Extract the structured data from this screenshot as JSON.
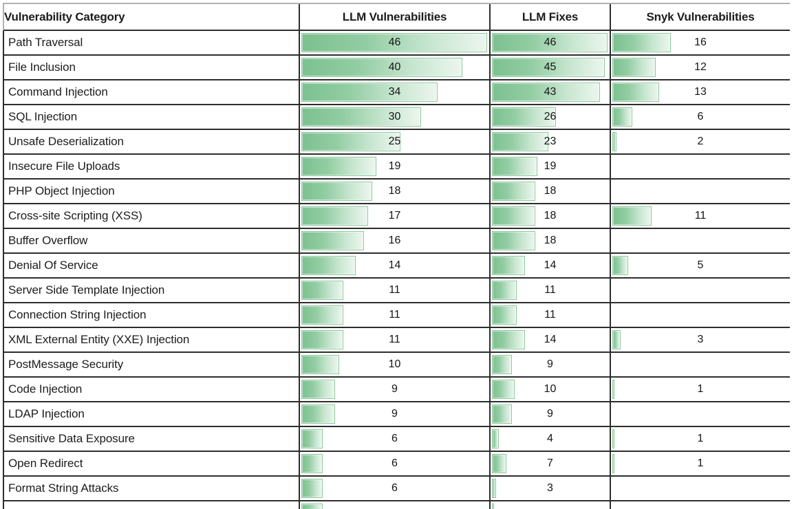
{
  "table": {
    "columns": [
      {
        "key": "category",
        "label": "Vulnerability Category"
      },
      {
        "key": "llm_vulnerabilities",
        "label": "LLM Vulnerabilities"
      },
      {
        "key": "llm_fixes",
        "label": "LLM Fixes"
      },
      {
        "key": "snyk",
        "label": "Snyk Vulnerabilities"
      }
    ],
    "bar_scale_max": 46,
    "bar_color_start": "#7cc190",
    "bar_color_end": "#ecf6ee",
    "bar_border_color": "#8cc79b",
    "grid_border_color": "#2d2d2d",
    "rows": [
      {
        "category": "Path Traversal",
        "llm_vulnerabilities": 46,
        "llm_fixes": 46,
        "snyk": 16
      },
      {
        "category": "File Inclusion",
        "llm_vulnerabilities": 40,
        "llm_fixes": 45,
        "snyk": 12
      },
      {
        "category": "Command Injection",
        "llm_vulnerabilities": 34,
        "llm_fixes": 43,
        "snyk": 13
      },
      {
        "category": "SQL Injection",
        "llm_vulnerabilities": 30,
        "llm_fixes": 26,
        "snyk": 6
      },
      {
        "category": "Unsafe Deserialization",
        "llm_vulnerabilities": 25,
        "llm_fixes": 23,
        "snyk": 2
      },
      {
        "category": "Insecure File Uploads",
        "llm_vulnerabilities": 19,
        "llm_fixes": 19,
        "snyk": null
      },
      {
        "category": "PHP Object Injection",
        "llm_vulnerabilities": 18,
        "llm_fixes": 18,
        "snyk": null
      },
      {
        "category": "Cross-site Scripting (XSS)",
        "llm_vulnerabilities": 17,
        "llm_fixes": 18,
        "snyk": 11
      },
      {
        "category": "Buffer Overflow",
        "llm_vulnerabilities": 16,
        "llm_fixes": 18,
        "snyk": null
      },
      {
        "category": "Denial Of Service",
        "llm_vulnerabilities": 14,
        "llm_fixes": 14,
        "snyk": 5
      },
      {
        "category": "Server Side Template Injection",
        "llm_vulnerabilities": 11,
        "llm_fixes": 11,
        "snyk": null
      },
      {
        "category": "Connection String Injection",
        "llm_vulnerabilities": 11,
        "llm_fixes": 11,
        "snyk": null
      },
      {
        "category": "XML External Entity (XXE) Injection",
        "llm_vulnerabilities": 11,
        "llm_fixes": 14,
        "snyk": 3
      },
      {
        "category": "PostMessage Security",
        "llm_vulnerabilities": 10,
        "llm_fixes": 9,
        "snyk": null
      },
      {
        "category": "Code Injection",
        "llm_vulnerabilities": 9,
        "llm_fixes": 10,
        "snyk": 1
      },
      {
        "category": "LDAP Injection",
        "llm_vulnerabilities": 9,
        "llm_fixes": 9,
        "snyk": null
      },
      {
        "category": "Sensitive Data Exposure",
        "llm_vulnerabilities": 6,
        "llm_fixes": 4,
        "snyk": 1
      },
      {
        "category": "Open Redirect",
        "llm_vulnerabilities": 6,
        "llm_fixes": 7,
        "snyk": 1
      },
      {
        "category": "Format String Attacks",
        "llm_vulnerabilities": 6,
        "llm_fixes": 3,
        "snyk": null
      }
    ],
    "partial_row": {
      "category": "",
      "llm_vulnerabilities": 6,
      "llm_fixes": 2,
      "snyk": null,
      "cut_off": true
    }
  },
  "chart_data": {
    "type": "table",
    "title": "",
    "columns": [
      "Vulnerability Category",
      "LLM Vulnerabilities",
      "LLM Fixes",
      "Snyk Vulnerabilities"
    ],
    "categories": [
      "Path Traversal",
      "File Inclusion",
      "Command Injection",
      "SQL Injection",
      "Unsafe Deserialization",
      "Insecure File Uploads",
      "PHP Object Injection",
      "Cross-site Scripting (XSS)",
      "Buffer Overflow",
      "Denial Of Service",
      "Server Side Template Injection",
      "Connection String Injection",
      "XML External Entity (XXE) Injection",
      "PostMessage Security",
      "Code Injection",
      "LDAP Injection",
      "Sensitive Data Exposure",
      "Open Redirect",
      "Format String Attacks"
    ],
    "series": [
      {
        "name": "LLM Vulnerabilities",
        "values": [
          46,
          40,
          34,
          30,
          25,
          19,
          18,
          17,
          16,
          14,
          11,
          11,
          11,
          10,
          9,
          9,
          6,
          6,
          6
        ]
      },
      {
        "name": "LLM Fixes",
        "values": [
          46,
          45,
          43,
          26,
          23,
          19,
          18,
          18,
          18,
          14,
          11,
          11,
          14,
          9,
          10,
          9,
          4,
          7,
          3
        ]
      },
      {
        "name": "Snyk Vulnerabilities",
        "values": [
          16,
          12,
          13,
          6,
          2,
          null,
          null,
          11,
          null,
          5,
          null,
          null,
          3,
          null,
          1,
          null,
          1,
          1,
          null
        ]
      }
    ],
    "bar_style": "in-cell gradient green data bars, all columns scaled 0 to 46",
    "value_range": [
      0,
      46
    ],
    "legend_position": "none",
    "grid": true
  }
}
